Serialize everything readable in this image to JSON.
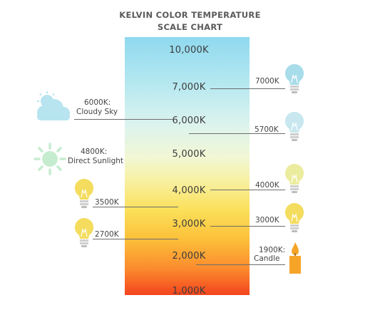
{
  "title": {
    "line1": "KELVIN COLOR TEMPERATURE",
    "line2": "SCALE CHART"
  },
  "scale": {
    "ticks": [
      "10,000K",
      "7,000K",
      "6,000K",
      "5,000K",
      "4,000K",
      "3,000K",
      "2,000K",
      "1,000K"
    ]
  },
  "right_labels": {
    "k7000": "7000K",
    "k5700": "5700K",
    "k4000": "4000K",
    "k3000": "3000K",
    "k1900_line1": "1900K:",
    "k1900_line2": "Candle"
  },
  "left_labels": {
    "k6000_line1": "6000K:",
    "k6000_line2": "Cloudy Sky",
    "k4800_line1": "4800K:",
    "k4800_line2": "Direct Sunlight",
    "k3500": "3500K",
    "k2700": "2700K"
  },
  "colors": {
    "bulb_blue": "#a9dcea",
    "bulb_lightblue": "#c8e7ef",
    "bulb_paleyellow": "#ecec9e",
    "bulb_yellow": "#f4dc5e",
    "cloud": "#b7e4ef",
    "sun": "#c6ecd0",
    "candle": "#f6a428"
  },
  "icons": [
    "cloud-sun-icon",
    "sun-icon",
    "light-bulb-icon",
    "candle-icon"
  ]
}
